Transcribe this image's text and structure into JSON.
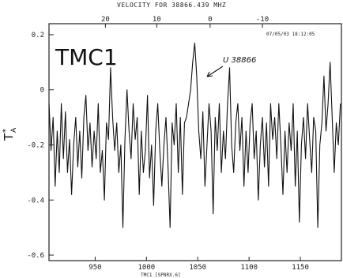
{
  "chart_data": {
    "type": "line",
    "title": "VELOCITY FOR  38866.439 MHZ",
    "timestamp": "07/05/03 18:12:05",
    "source_label": "TMC1",
    "ylabel": "T",
    "ylabel_sup": "*",
    "ylabel_sub": "A",
    "annotation": "U 38866",
    "x_bottom_label": "TMC1   [SPBRX.6]",
    "ylim": [
      -0.62,
      0.24
    ],
    "xlim": [
      905,
      1190
    ],
    "yticks": [
      0.2,
      0,
      -0.2,
      -0.4,
      -0.6
    ],
    "ytick_labels": [
      "0.2",
      "0",
      "-0.2",
      "-0.4",
      "-0.6"
    ],
    "xticks_bottom": [
      950,
      1000,
      1050,
      1100,
      1150
    ],
    "xtick_labels_bottom": [
      "950",
      "1000",
      "1050",
      "1100",
      "1150"
    ],
    "velocity_ticks": [
      {
        "label": "20",
        "channel": 960
      },
      {
        "label": "10",
        "channel": 1010
      },
      {
        "label": "0",
        "channel": 1062
      },
      {
        "label": "-10",
        "channel": 1113
      }
    ],
    "series": [
      {
        "x": [
          905,
          907,
          909,
          911,
          913,
          915,
          917,
          919,
          921,
          923,
          925,
          927,
          929,
          931,
          933,
          935,
          937,
          939,
          941,
          943,
          945,
          947,
          949,
          951,
          953,
          955,
          957,
          959,
          961,
          963,
          965,
          967,
          969,
          971,
          973,
          975,
          977,
          979,
          981,
          983,
          985,
          987,
          989,
          991,
          993,
          995,
          997,
          999,
          1001,
          1003,
          1005,
          1007,
          1009,
          1011,
          1013,
          1015,
          1017,
          1019,
          1021,
          1023,
          1025,
          1027,
          1029,
          1031,
          1033,
          1035,
          1037,
          1039,
          1041,
          1043,
          1045,
          1047,
          1049,
          1051,
          1053,
          1055,
          1057,
          1059,
          1061,
          1063,
          1065,
          1067,
          1069,
          1071,
          1073,
          1075,
          1077,
          1079,
          1081,
          1083,
          1085,
          1087,
          1089,
          1091,
          1093,
          1095,
          1097,
          1099,
          1101,
          1103,
          1105,
          1107,
          1109,
          1111,
          1113,
          1115,
          1117,
          1119,
          1121,
          1123,
          1125,
          1127,
          1129,
          1131,
          1133,
          1135,
          1137,
          1139,
          1141,
          1143,
          1145,
          1147,
          1149,
          1151,
          1153,
          1155,
          1157,
          1159,
          1161,
          1163,
          1165,
          1167,
          1169,
          1171,
          1173,
          1175,
          1177,
          1179,
          1181,
          1183,
          1185,
          1187,
          1189
        ],
        "y": [
          -0.05,
          -0.22,
          -0.1,
          -0.35,
          -0.15,
          -0.3,
          -0.05,
          -0.25,
          -0.08,
          -0.3,
          -0.18,
          -0.38,
          -0.2,
          -0.1,
          -0.28,
          -0.15,
          -0.32,
          -0.1,
          -0.02,
          -0.22,
          -0.12,
          -0.28,
          -0.15,
          -0.25,
          -0.05,
          -0.3,
          -0.22,
          -0.4,
          -0.12,
          -0.18,
          0.08,
          -0.1,
          -0.22,
          -0.12,
          -0.3,
          -0.2,
          -0.5,
          -0.18,
          0.0,
          -0.15,
          -0.25,
          -0.05,
          -0.18,
          -0.1,
          -0.38,
          -0.15,
          -0.3,
          -0.22,
          -0.02,
          -0.32,
          -0.2,
          -0.42,
          -0.15,
          -0.05,
          -0.22,
          -0.35,
          -0.2,
          -0.1,
          -0.28,
          -0.5,
          -0.12,
          -0.2,
          -0.05,
          -0.3,
          -0.1,
          -0.38,
          -0.12,
          -0.1,
          -0.05,
          0.0,
          0.1,
          0.17,
          0.05,
          -0.15,
          -0.25,
          -0.08,
          -0.35,
          -0.2,
          -0.05,
          -0.15,
          -0.45,
          -0.1,
          -0.22,
          -0.05,
          -0.3,
          -0.15,
          -0.25,
          -0.05,
          0.08,
          -0.2,
          -0.3,
          -0.12,
          -0.05,
          -0.22,
          -0.1,
          -0.35,
          -0.15,
          -0.3,
          -0.12,
          -0.05,
          -0.25,
          -0.15,
          -0.4,
          -0.2,
          -0.1,
          -0.28,
          -0.12,
          -0.35,
          -0.05,
          -0.18,
          -0.1,
          -0.25,
          -0.05,
          -0.2,
          -0.38,
          -0.15,
          -0.3,
          -0.12,
          -0.22,
          -0.05,
          -0.35,
          -0.15,
          -0.48,
          -0.2,
          -0.1,
          -0.25,
          -0.05,
          -0.18,
          -0.3,
          -0.1,
          -0.15,
          -0.5,
          -0.2,
          -0.12,
          0.05,
          -0.15,
          -0.05,
          0.1,
          -0.1,
          -0.3,
          -0.12,
          -0.2,
          -0.05
        ]
      }
    ]
  }
}
